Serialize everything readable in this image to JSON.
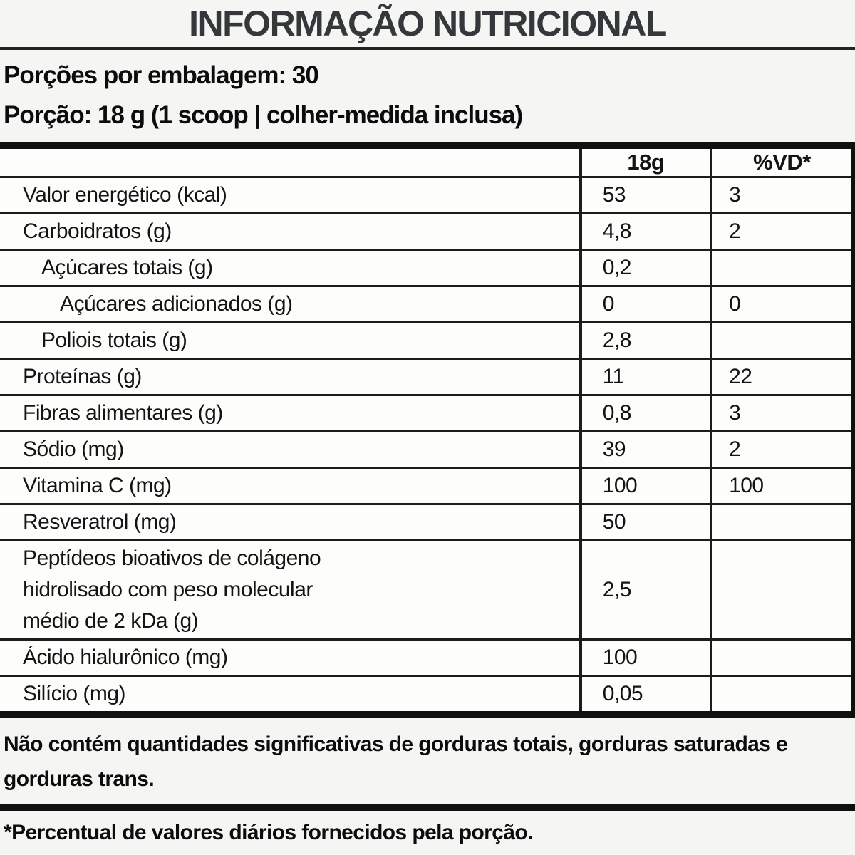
{
  "title": "INFORMAÇÃO NUTRICIONAL",
  "serving_info": {
    "servings_per_package": "Porções por embalagem: 30",
    "serving_size": "Porção: 18 g (1 scoop | colher-medida inclusa)"
  },
  "table": {
    "columns": {
      "nutrient": "",
      "amount": "18g",
      "daily_value": "%VD*"
    },
    "rows": [
      {
        "label": "Valor energético (kcal)",
        "amount": "53",
        "dv": "3",
        "indent": 0
      },
      {
        "label": "Carboidratos (g)",
        "amount": "4,8",
        "dv": "2",
        "indent": 0
      },
      {
        "label": "Açúcares totais (g)",
        "amount": "0,2",
        "dv": "",
        "indent": 1
      },
      {
        "label": "Açúcares adicionados (g)",
        "amount": "0",
        "dv": "0",
        "indent": 2
      },
      {
        "label": "Poliois totais (g)",
        "amount": "2,8",
        "dv": "",
        "indent": 1
      },
      {
        "label": "Proteínas (g)",
        "amount": "11",
        "dv": "22",
        "indent": 0
      },
      {
        "label": "Fibras alimentares (g)",
        "amount": "0,8",
        "dv": "3",
        "indent": 0
      },
      {
        "label": "Sódio (mg)",
        "amount": "39",
        "dv": "2",
        "indent": 0
      },
      {
        "label": "Vitamina C (mg)",
        "amount": "100",
        "dv": "100",
        "indent": 0
      },
      {
        "label": "Resveratrol (mg)",
        "amount": "50",
        "dv": "",
        "indent": 0
      },
      {
        "label": "Peptídeos bioativos de colágeno\nhidrolisado com peso molecular\nmédio de 2 kDa (g)",
        "amount": "2,5",
        "dv": "",
        "indent": 0
      },
      {
        "label": "Ácido hialurônico (mg)",
        "amount": "100",
        "dv": "",
        "indent": 0
      },
      {
        "label": "Silício (mg)",
        "amount": "0,05",
        "dv": "",
        "indent": 0
      }
    ]
  },
  "footnotes": {
    "no_significant_amounts": "Não contém quantidades significativas de gorduras totais, gorduras saturadas e gorduras trans.",
    "daily_values_note": "*Percentual de valores diários fornecidos pela porção."
  }
}
